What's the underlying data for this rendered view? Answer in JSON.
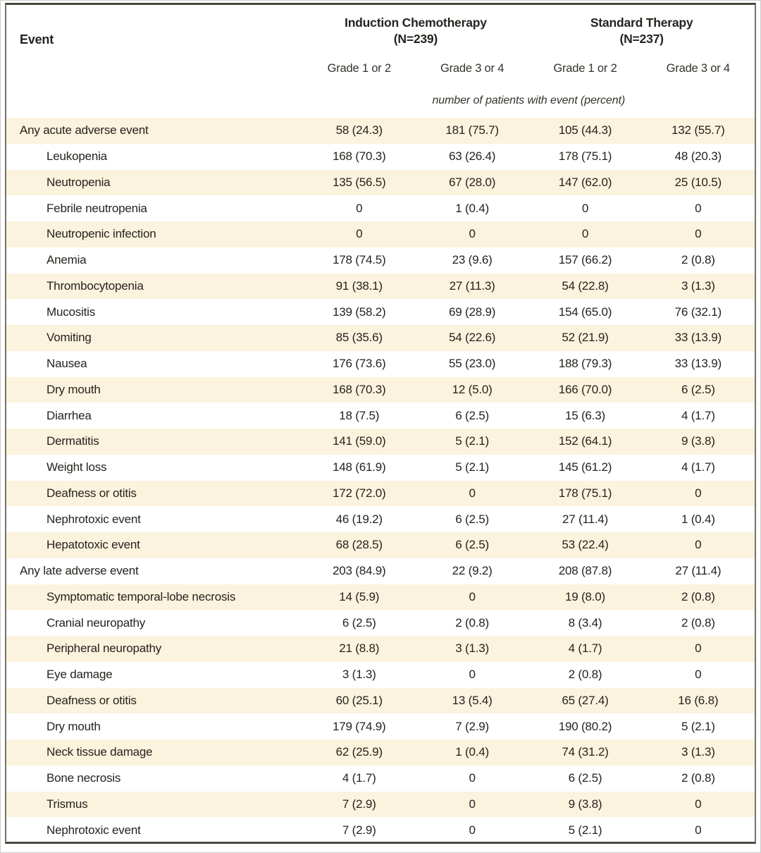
{
  "table": {
    "event_header": "Event",
    "groups": [
      {
        "title": "Induction Chemotherapy",
        "n": "(N=239)"
      },
      {
        "title": "Standard Therapy",
        "n": "(N=237)"
      }
    ],
    "grade_headers": [
      "Grade 1 or 2",
      "Grade 3 or 4",
      "Grade 1 or 2",
      "Grade 3 or 4"
    ],
    "units_note": "number of patients with event (percent)",
    "rows": [
      {
        "event": "Any acute adverse event",
        "indent": false,
        "values": [
          "58 (24.3)",
          "181 (75.7)",
          "105 (44.3)",
          "132 (55.7)"
        ]
      },
      {
        "event": "Leukopenia",
        "indent": true,
        "values": [
          "168 (70.3)",
          "63 (26.4)",
          "178 (75.1)",
          "48 (20.3)"
        ]
      },
      {
        "event": "Neutropenia",
        "indent": true,
        "values": [
          "135 (56.5)",
          "67 (28.0)",
          "147 (62.0)",
          "25 (10.5)"
        ]
      },
      {
        "event": "Febrile neutropenia",
        "indent": true,
        "values": [
          "0",
          "1 (0.4)",
          "0",
          "0"
        ]
      },
      {
        "event": "Neutropenic infection",
        "indent": true,
        "values": [
          "0",
          "0",
          "0",
          "0"
        ]
      },
      {
        "event": "Anemia",
        "indent": true,
        "values": [
          "178 (74.5)",
          "23 (9.6)",
          "157 (66.2)",
          "2 (0.8)"
        ]
      },
      {
        "event": "Thrombocytopenia",
        "indent": true,
        "values": [
          "91 (38.1)",
          "27 (11.3)",
          "54 (22.8)",
          "3 (1.3)"
        ]
      },
      {
        "event": "Mucositis",
        "indent": true,
        "values": [
          "139 (58.2)",
          "69 (28.9)",
          "154 (65.0)",
          "76 (32.1)"
        ]
      },
      {
        "event": "Vomiting",
        "indent": true,
        "values": [
          "85 (35.6)",
          "54 (22.6)",
          "52 (21.9)",
          "33 (13.9)"
        ]
      },
      {
        "event": "Nausea",
        "indent": true,
        "values": [
          "176 (73.6)",
          "55 (23.0)",
          "188 (79.3)",
          "33 (13.9)"
        ]
      },
      {
        "event": "Dry mouth",
        "indent": true,
        "values": [
          "168 (70.3)",
          "12 (5.0)",
          "166 (70.0)",
          "6 (2.5)"
        ]
      },
      {
        "event": "Diarrhea",
        "indent": true,
        "values": [
          "18 (7.5)",
          "6 (2.5)",
          "15 (6.3)",
          "4 (1.7)"
        ]
      },
      {
        "event": "Dermatitis",
        "indent": true,
        "values": [
          "141 (59.0)",
          "5 (2.1)",
          "152 (64.1)",
          "9 (3.8)"
        ]
      },
      {
        "event": "Weight loss",
        "indent": true,
        "values": [
          "148 (61.9)",
          "5 (2.1)",
          "145 (61.2)",
          "4 (1.7)"
        ]
      },
      {
        "event": "Deafness or otitis",
        "indent": true,
        "values": [
          "172 (72.0)",
          "0",
          "178 (75.1)",
          "0"
        ]
      },
      {
        "event": "Nephrotoxic event",
        "indent": true,
        "values": [
          "46 (19.2)",
          "6 (2.5)",
          "27 (11.4)",
          "1 (0.4)"
        ]
      },
      {
        "event": "Hepatotoxic event",
        "indent": true,
        "values": [
          "68 (28.5)",
          "6 (2.5)",
          "53 (22.4)",
          "0"
        ]
      },
      {
        "event": "Any late adverse event",
        "indent": false,
        "values": [
          "203 (84.9)",
          "22 (9.2)",
          "208 (87.8)",
          "27 (11.4)"
        ]
      },
      {
        "event": "Symptomatic temporal-lobe necrosis",
        "indent": true,
        "values": [
          "14 (5.9)",
          "0",
          "19 (8.0)",
          "2 (0.8)"
        ]
      },
      {
        "event": "Cranial neuropathy",
        "indent": true,
        "values": [
          "6 (2.5)",
          "2 (0.8)",
          "8 (3.4)",
          "2 (0.8)"
        ]
      },
      {
        "event": "Peripheral neuropathy",
        "indent": true,
        "values": [
          "21 (8.8)",
          "3 (1.3)",
          "4 (1.7)",
          "0"
        ]
      },
      {
        "event": "Eye damage",
        "indent": true,
        "values": [
          "3 (1.3)",
          "0",
          "2 (0.8)",
          "0"
        ]
      },
      {
        "event": "Deafness or otitis",
        "indent": true,
        "values": [
          "60 (25.1)",
          "13 (5.4)",
          "65 (27.4)",
          "16 (6.8)"
        ]
      },
      {
        "event": "Dry mouth",
        "indent": true,
        "values": [
          "179 (74.9)",
          "7 (2.9)",
          "190 (80.2)",
          "5 (2.1)"
        ]
      },
      {
        "event": "Neck tissue damage",
        "indent": true,
        "values": [
          "62 (25.9)",
          "1 (0.4)",
          "74 (31.2)",
          "3 (1.3)"
        ]
      },
      {
        "event": "Bone necrosis",
        "indent": true,
        "values": [
          "4 (1.7)",
          "0",
          "6 (2.5)",
          "2 (0.8)"
        ]
      },
      {
        "event": "Trismus",
        "indent": true,
        "values": [
          "7 (2.9)",
          "0",
          "9 (3.8)",
          "0"
        ]
      },
      {
        "event": "Nephrotoxic event",
        "indent": true,
        "values": [
          "7 (2.9)",
          "0",
          "5 (2.1)",
          "0"
        ]
      }
    ]
  },
  "colors": {
    "row_shade": "#fbf3dd",
    "border_dark": "#4a463f",
    "border_side": "#76716a",
    "text": "#26221e"
  }
}
